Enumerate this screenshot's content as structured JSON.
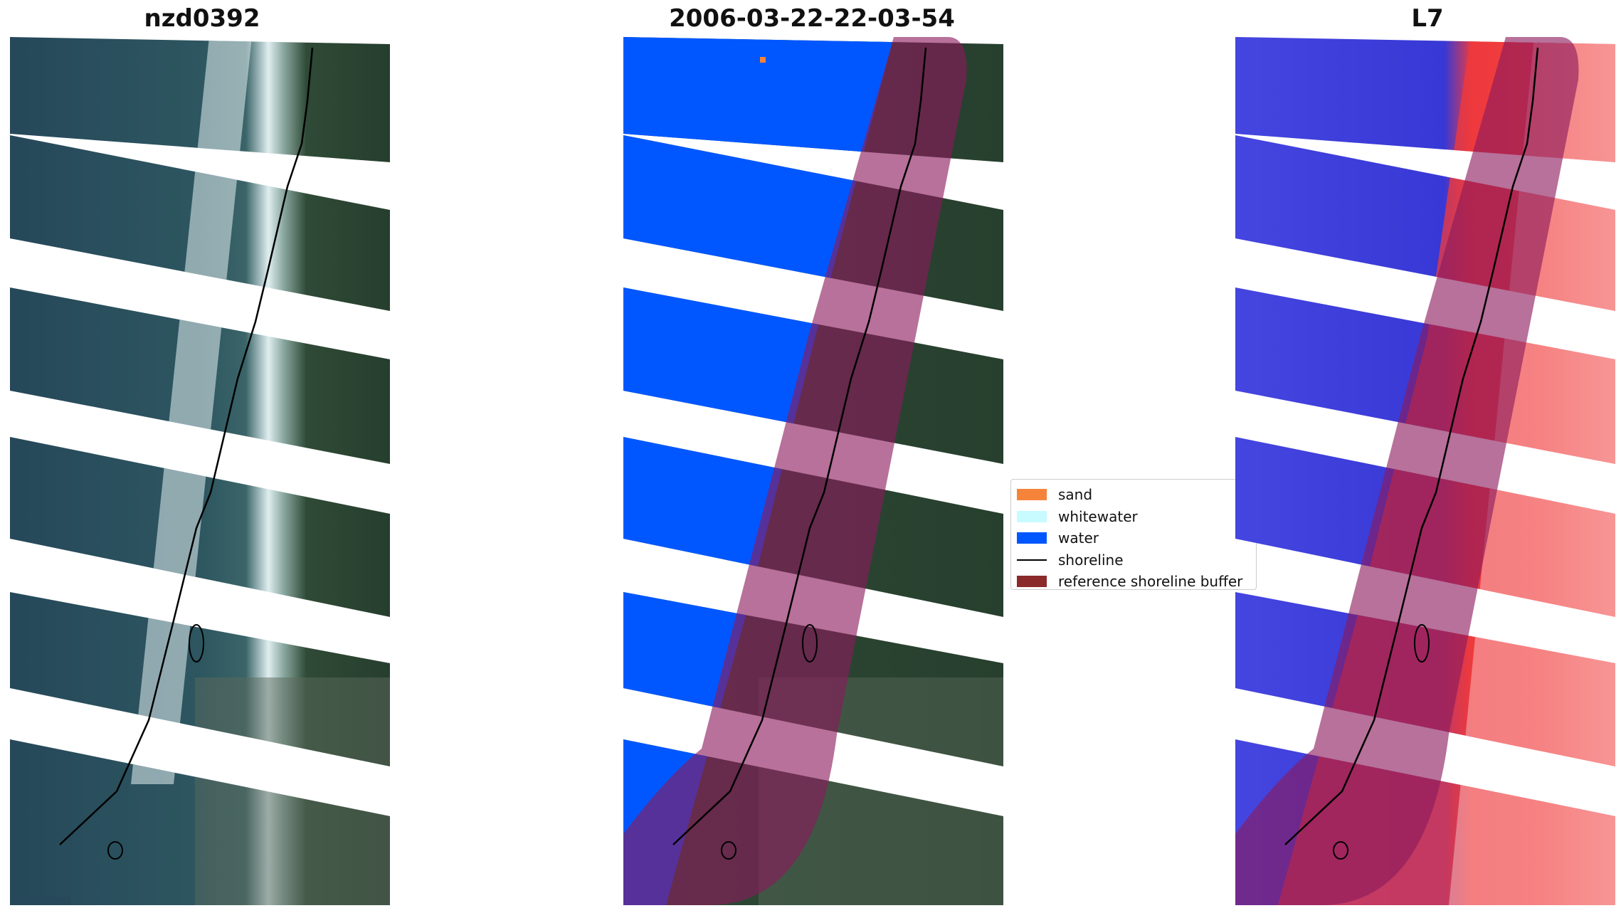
{
  "panels": [
    {
      "title": "nzd0392",
      "kind": "rgb"
    },
    {
      "title": "2006-03-22-22-03-54",
      "kind": "classified"
    },
    {
      "title": "L7",
      "kind": "index"
    }
  ],
  "legend": {
    "items": [
      {
        "label": "sand",
        "color": "#f5843a",
        "type": "patch"
      },
      {
        "label": "whitewater",
        "color": "#c8fbff",
        "type": "patch"
      },
      {
        "label": "water",
        "color": "#0057ff",
        "type": "patch"
      },
      {
        "label": "shoreline",
        "color": "#000000",
        "type": "line"
      },
      {
        "label": "reference shoreline buffer",
        "color": "#8b2a2a",
        "type": "patch"
      }
    ]
  },
  "colors": {
    "ocean_rgb": "#2a4f5c",
    "land_rgb": "#2f4a36",
    "surf": "#e6f2f4",
    "water_class": "#0057ff",
    "index_water": "#3a3ad8",
    "index_land": "#f23a3a",
    "buffer_overlay": "#a0306a"
  }
}
